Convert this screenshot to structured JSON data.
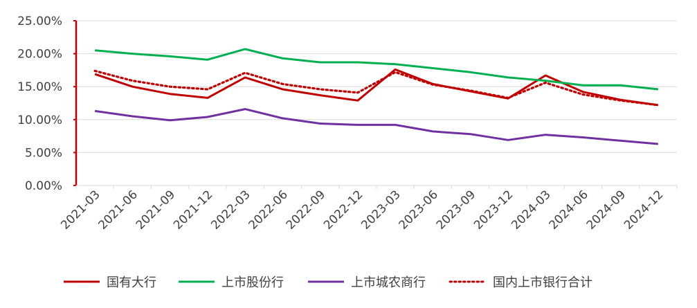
{
  "chart_data": {
    "type": "line",
    "categories": [
      "2021-03",
      "2021-06",
      "2021-09",
      "2021-12",
      "2022-03",
      "2022-06",
      "2022-09",
      "2022-12",
      "2023-03",
      "2023-06",
      "2023-09",
      "2023-12",
      "2024-03",
      "2024-06",
      "2024-09",
      "2024-12"
    ],
    "y_ticks": [
      "0.00%",
      "5.00%",
      "10.00%",
      "15.00%",
      "20.00%",
      "25.00%"
    ],
    "ylim": [
      0,
      25
    ],
    "grid": true,
    "legend_position": "bottom",
    "series": [
      {
        "name": "国有大行",
        "color": "#c00000",
        "dash": "solid",
        "values": [
          16.9,
          15.0,
          13.9,
          13.3,
          16.4,
          14.6,
          13.7,
          12.9,
          17.6,
          15.4,
          14.3,
          13.2,
          16.7,
          14.2,
          13.0,
          12.2
        ]
      },
      {
        "name": "上市股份行",
        "color": "#00b050",
        "dash": "solid",
        "values": [
          20.5,
          20.0,
          19.6,
          19.1,
          20.7,
          19.3,
          18.7,
          18.7,
          18.4,
          17.8,
          17.2,
          16.4,
          15.9,
          15.2,
          15.2,
          14.6
        ]
      },
      {
        "name": "上市城农商行",
        "color": "#7030a0",
        "dash": "solid",
        "values": [
          11.3,
          10.5,
          9.9,
          10.4,
          11.6,
          10.2,
          9.4,
          9.2,
          9.2,
          8.2,
          7.8,
          6.9,
          7.7,
          7.3,
          6.8,
          6.3
        ]
      },
      {
        "name": "国内上市银行合计",
        "color": "#c00000",
        "dash": "dotted",
        "values": [
          17.4,
          15.9,
          15.0,
          14.6,
          17.1,
          15.4,
          14.6,
          14.1,
          17.2,
          15.3,
          14.4,
          13.3,
          15.6,
          13.8,
          12.9,
          12.2
        ]
      }
    ]
  }
}
